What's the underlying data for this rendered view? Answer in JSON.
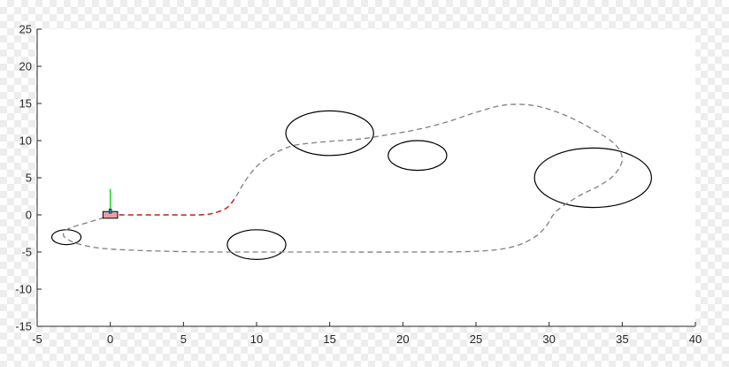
{
  "chart_data": {
    "type": "scatter",
    "title": "",
    "xlabel": "",
    "ylabel": "",
    "xlim": [
      -5,
      40
    ],
    "ylim": [
      -15,
      25
    ],
    "xticks": [
      -5,
      0,
      5,
      10,
      15,
      20,
      25,
      30,
      35,
      40
    ],
    "yticks": [
      -15,
      -10,
      -5,
      0,
      5,
      10,
      15,
      20,
      25
    ],
    "grid": false,
    "legend": "none",
    "colors": {
      "plot_bg": "#ffffff",
      "reference_path": "#7f7f7f",
      "traveled_path": "#d62728",
      "obstacle": "#000000",
      "vehicle_body": "#e8a0a8",
      "vehicle_heading": "#22dd22",
      "vehicle_marker": "#1f77b4"
    },
    "obstacles": [
      {
        "cx": -3,
        "cy": -3,
        "rx": 1,
        "ry": 1
      },
      {
        "cx": 10,
        "cy": -4,
        "rx": 2,
        "ry": 2
      },
      {
        "cx": 15,
        "cy": 11,
        "rx": 3,
        "ry": 3
      },
      {
        "cx": 21,
        "cy": 8,
        "rx": 2,
        "ry": 2
      },
      {
        "cx": 33,
        "cy": 5,
        "rx": 4,
        "ry": 4
      }
    ],
    "reference_path": [
      [
        0,
        0
      ],
      [
        2,
        0
      ],
      [
        4,
        0
      ],
      [
        6,
        0
      ],
      [
        7,
        0.2
      ],
      [
        8,
        1
      ],
      [
        8.6,
        2.5
      ],
      [
        9.2,
        4.5
      ],
      [
        10,
        6.5
      ],
      [
        11,
        8
      ],
      [
        12,
        9
      ],
      [
        13,
        9.5
      ],
      [
        15,
        9.9
      ],
      [
        17,
        10.2
      ],
      [
        19,
        10.8
      ],
      [
        21,
        11.5
      ],
      [
        23,
        12.5
      ],
      [
        25,
        13.8
      ],
      [
        27,
        14.8
      ],
      [
        29,
        14.7
      ],
      [
        31,
        13.5
      ],
      [
        33,
        11.5
      ],
      [
        34.5,
        9.5
      ],
      [
        35,
        7.5
      ],
      [
        34.5,
        5.5
      ],
      [
        33.5,
        4
      ],
      [
        32,
        2.5
      ],
      [
        30.5,
        0.5
      ],
      [
        29.8,
        -1.5
      ],
      [
        29,
        -3
      ],
      [
        27.5,
        -4.3
      ],
      [
        25,
        -4.9
      ],
      [
        20,
        -5
      ],
      [
        15,
        -5
      ],
      [
        10,
        -5
      ],
      [
        5,
        -4.95
      ],
      [
        0,
        -4.6
      ],
      [
        -2,
        -4
      ],
      [
        -3,
        -3.2
      ],
      [
        -3.2,
        -2.5
      ],
      [
        -2.8,
        -1.8
      ],
      [
        -1.5,
        -1
      ],
      [
        -0.5,
        -0.4
      ],
      [
        0,
        0
      ]
    ],
    "traveled_path": [
      [
        0,
        0
      ],
      [
        2,
        0
      ],
      [
        4,
        0
      ],
      [
        6,
        0
      ],
      [
        7,
        0.2
      ],
      [
        8,
        1
      ],
      [
        8.6,
        2.5
      ]
    ],
    "vehicle": {
      "x": 0,
      "y": 0,
      "width": 1,
      "height": 0.9,
      "heading_length": 3.5
    }
  }
}
